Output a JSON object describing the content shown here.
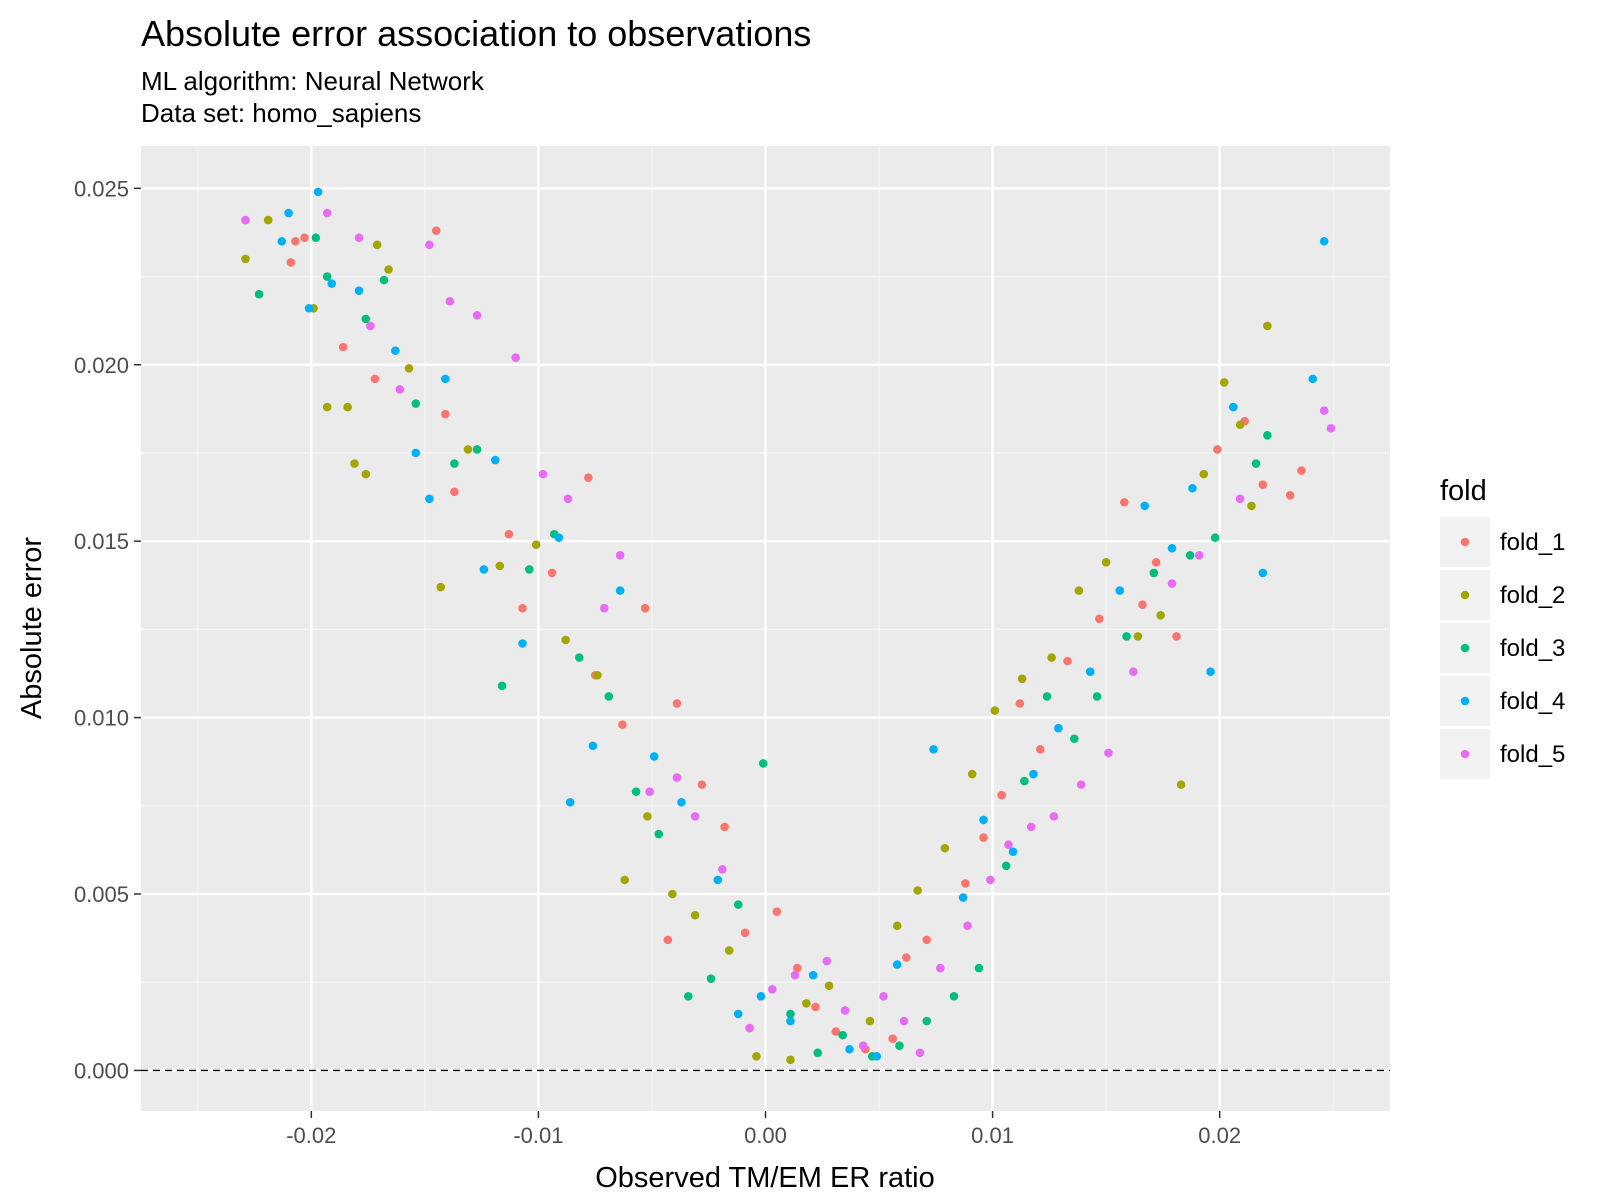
{
  "chart_data": {
    "type": "scatter",
    "title": "Absolute error association to observations",
    "subtitle_lines": [
      "ML algorithm: Neural Network",
      "Data set: homo_sapiens"
    ],
    "xlabel": "Observed TM/EM ER ratio",
    "ylabel": "Absolute error",
    "xlim": [
      -0.0275,
      0.0275
    ],
    "ylim": [
      -0.00115,
      0.0262
    ],
    "x_ticks": [
      -0.02,
      -0.01,
      0.0,
      0.01,
      0.02
    ],
    "x_tick_labels": [
      "-0.02",
      "-0.01",
      "0.00",
      "0.01",
      "0.02"
    ],
    "y_ticks": [
      0.0,
      0.005,
      0.01,
      0.015,
      0.02,
      0.025
    ],
    "y_tick_labels": [
      "0.000",
      "0.005",
      "0.010",
      "0.015",
      "0.020",
      "0.025"
    ],
    "grid": true,
    "reference_line": {
      "y": 0,
      "style": "dashed"
    },
    "legend": {
      "title": "fold",
      "position": "right",
      "entries": [
        {
          "name": "fold_1",
          "color": "#F8766D"
        },
        {
          "name": "fold_2",
          "color": "#A3A500"
        },
        {
          "name": "fold_3",
          "color": "#00BF7D"
        },
        {
          "name": "fold_4",
          "color": "#00B0F6"
        },
        {
          "name": "fold_5",
          "color": "#E76BF3"
        }
      ]
    },
    "series": [
      {
        "name": "fold_1",
        "color": "#F8766D",
        "points": [
          [
            -0.0209,
            0.0229
          ],
          [
            -0.0207,
            0.0235
          ],
          [
            -0.0203,
            0.0236
          ],
          [
            -0.0186,
            0.0205
          ],
          [
            -0.0172,
            0.0196
          ],
          [
            -0.0145,
            0.0238
          ],
          [
            -0.0141,
            0.0186
          ],
          [
            -0.0137,
            0.0164
          ],
          [
            -0.0113,
            0.0152
          ],
          [
            -0.0107,
            0.0131
          ],
          [
            -0.0094,
            0.0141
          ],
          [
            -0.0078,
            0.0168
          ],
          [
            -0.0075,
            0.0112
          ],
          [
            -0.0063,
            0.0098
          ],
          [
            -0.0053,
            0.0131
          ],
          [
            -0.0043,
            0.0037
          ],
          [
            -0.0039,
            0.0104
          ],
          [
            -0.0028,
            0.0081
          ],
          [
            -0.0018,
            0.0069
          ],
          [
            -0.0009,
            0.0039
          ],
          [
            0.0005,
            0.0045
          ],
          [
            0.0014,
            0.0029
          ],
          [
            0.0022,
            0.0018
          ],
          [
            0.0031,
            0.0011
          ],
          [
            0.0044,
            0.0006
          ],
          [
            0.0056,
            0.0009
          ],
          [
            0.0062,
            0.0032
          ],
          [
            0.0071,
            0.0037
          ],
          [
            0.0088,
            0.0053
          ],
          [
            0.0096,
            0.0066
          ],
          [
            0.0104,
            0.0078
          ],
          [
            0.0112,
            0.0104
          ],
          [
            0.0121,
            0.0091
          ],
          [
            0.0133,
            0.0116
          ],
          [
            0.0147,
            0.0128
          ],
          [
            0.0158,
            0.0161
          ],
          [
            0.0166,
            0.0132
          ],
          [
            0.0172,
            0.0144
          ],
          [
            0.0181,
            0.0123
          ],
          [
            0.0199,
            0.0176
          ],
          [
            0.0211,
            0.0184
          ],
          [
            0.0219,
            0.0166
          ],
          [
            0.0231,
            0.0163
          ],
          [
            0.0236,
            0.017
          ]
        ]
      },
      {
        "name": "fold_2",
        "color": "#A3A500",
        "points": [
          [
            -0.0229,
            0.023
          ],
          [
            -0.0219,
            0.0241
          ],
          [
            -0.0199,
            0.0216
          ],
          [
            -0.0193,
            0.0188
          ],
          [
            -0.0184,
            0.0188
          ],
          [
            -0.0181,
            0.0172
          ],
          [
            -0.0176,
            0.0169
          ],
          [
            -0.0171,
            0.0234
          ],
          [
            -0.0166,
            0.0227
          ],
          [
            -0.0157,
            0.0199
          ],
          [
            -0.0143,
            0.0137
          ],
          [
            -0.0131,
            0.0176
          ],
          [
            -0.0117,
            0.0143
          ],
          [
            -0.0101,
            0.0149
          ],
          [
            -0.0088,
            0.0122
          ],
          [
            -0.0074,
            0.0112
          ],
          [
            -0.0062,
            0.0054
          ],
          [
            -0.0052,
            0.0072
          ],
          [
            -0.0041,
            0.005
          ],
          [
            -0.0031,
            0.0044
          ],
          [
            -0.0016,
            0.0034
          ],
          [
            -0.0004,
            0.0004
          ],
          [
            0.0011,
            0.0003
          ],
          [
            0.0018,
            0.0019
          ],
          [
            0.0028,
            0.0024
          ],
          [
            0.0046,
            0.0014
          ],
          [
            0.0058,
            0.0041
          ],
          [
            0.0067,
            0.0051
          ],
          [
            0.0079,
            0.0063
          ],
          [
            0.0091,
            0.0084
          ],
          [
            0.0101,
            0.0102
          ],
          [
            0.0113,
            0.0111
          ],
          [
            0.0126,
            0.0117
          ],
          [
            0.0138,
            0.0136
          ],
          [
            0.015,
            0.0144
          ],
          [
            0.0164,
            0.0123
          ],
          [
            0.0174,
            0.0129
          ],
          [
            0.0183,
            0.0081
          ],
          [
            0.0193,
            0.0169
          ],
          [
            0.0202,
            0.0195
          ],
          [
            0.0209,
            0.0183
          ],
          [
            0.0221,
            0.0211
          ],
          [
            0.0214,
            0.016
          ]
        ]
      },
      {
        "name": "fold_3",
        "color": "#00BF7D",
        "points": [
          [
            -0.0223,
            0.022
          ],
          [
            -0.0198,
            0.0236
          ],
          [
            -0.0193,
            0.0225
          ],
          [
            -0.0176,
            0.0213
          ],
          [
            -0.0168,
            0.0224
          ],
          [
            -0.0154,
            0.0189
          ],
          [
            -0.0137,
            0.0172
          ],
          [
            -0.0127,
            0.0176
          ],
          [
            -0.0116,
            0.0109
          ],
          [
            -0.0104,
            0.0142
          ],
          [
            -0.0093,
            0.0152
          ],
          [
            -0.0082,
            0.0117
          ],
          [
            -0.0069,
            0.0106
          ],
          [
            -0.0057,
            0.0079
          ],
          [
            -0.0047,
            0.0067
          ],
          [
            -0.0034,
            0.0021
          ],
          [
            -0.0024,
            0.0026
          ],
          [
            -0.0012,
            0.0047
          ],
          [
            -0.0001,
            0.0087
          ],
          [
            0.0011,
            0.0016
          ],
          [
            0.0023,
            0.0005
          ],
          [
            0.0034,
            0.001
          ],
          [
            0.0047,
            0.0004
          ],
          [
            0.0059,
            0.0007
          ],
          [
            0.0071,
            0.0014
          ],
          [
            0.0083,
            0.0021
          ],
          [
            0.0094,
            0.0029
          ],
          [
            0.0106,
            0.0058
          ],
          [
            0.0114,
            0.0082
          ],
          [
            0.0124,
            0.0106
          ],
          [
            0.0136,
            0.0094
          ],
          [
            0.0146,
            0.0106
          ],
          [
            0.0159,
            0.0123
          ],
          [
            0.0171,
            0.0141
          ],
          [
            0.0187,
            0.0146
          ],
          [
            0.0198,
            0.0151
          ],
          [
            0.0216,
            0.0172
          ],
          [
            0.0221,
            0.018
          ]
        ]
      },
      {
        "name": "fold_4",
        "color": "#00B0F6",
        "points": [
          [
            -0.0213,
            0.0235
          ],
          [
            -0.021,
            0.0243
          ],
          [
            -0.0201,
            0.0216
          ],
          [
            -0.0197,
            0.0249
          ],
          [
            -0.0191,
            0.0223
          ],
          [
            -0.0179,
            0.0221
          ],
          [
            -0.0163,
            0.0204
          ],
          [
            -0.0154,
            0.0175
          ],
          [
            -0.0148,
            0.0162
          ],
          [
            -0.0141,
            0.0196
          ],
          [
            -0.0124,
            0.0142
          ],
          [
            -0.0119,
            0.0173
          ],
          [
            -0.0107,
            0.0121
          ],
          [
            -0.0091,
            0.0151
          ],
          [
            -0.0086,
            0.0076
          ],
          [
            -0.0076,
            0.0092
          ],
          [
            -0.0064,
            0.0136
          ],
          [
            -0.0049,
            0.0089
          ],
          [
            -0.0037,
            0.0076
          ],
          [
            -0.0021,
            0.0054
          ],
          [
            -0.0012,
            0.0016
          ],
          [
            -0.0002,
            0.0021
          ],
          [
            0.0011,
            0.0014
          ],
          [
            0.0021,
            0.0027
          ],
          [
            0.0037,
            0.0006
          ],
          [
            0.0049,
            0.0004
          ],
          [
            0.0058,
            0.003
          ],
          [
            0.0074,
            0.0091
          ],
          [
            0.0087,
            0.0049
          ],
          [
            0.0096,
            0.0071
          ],
          [
            0.0109,
            0.0062
          ],
          [
            0.0118,
            0.0084
          ],
          [
            0.0129,
            0.0097
          ],
          [
            0.0143,
            0.0113
          ],
          [
            0.0156,
            0.0136
          ],
          [
            0.0167,
            0.016
          ],
          [
            0.0179,
            0.0148
          ],
          [
            0.0188,
            0.0165
          ],
          [
            0.0196,
            0.0113
          ],
          [
            0.0206,
            0.0188
          ],
          [
            0.0219,
            0.0141
          ],
          [
            0.0241,
            0.0196
          ],
          [
            0.0246,
            0.0235
          ]
        ]
      },
      {
        "name": "fold_5",
        "color": "#E76BF3",
        "points": [
          [
            -0.0229,
            0.0241
          ],
          [
            -0.0193,
            0.0243
          ],
          [
            -0.0179,
            0.0236
          ],
          [
            -0.0174,
            0.0211
          ],
          [
            -0.0161,
            0.0193
          ],
          [
            -0.0148,
            0.0234
          ],
          [
            -0.0139,
            0.0218
          ],
          [
            -0.0127,
            0.0214
          ],
          [
            -0.011,
            0.0202
          ],
          [
            -0.0098,
            0.0169
          ],
          [
            -0.0087,
            0.0162
          ],
          [
            -0.0071,
            0.0131
          ],
          [
            -0.0064,
            0.0146
          ],
          [
            -0.0051,
            0.0079
          ],
          [
            -0.0039,
            0.0083
          ],
          [
            -0.0031,
            0.0072
          ],
          [
            -0.0019,
            0.0057
          ],
          [
            -0.0007,
            0.0012
          ],
          [
            0.0003,
            0.0023
          ],
          [
            0.0013,
            0.0027
          ],
          [
            0.0027,
            0.0031
          ],
          [
            0.0035,
            0.0017
          ],
          [
            0.0043,
            0.0007
          ],
          [
            0.0052,
            0.0021
          ],
          [
            0.0061,
            0.0014
          ],
          [
            0.0068,
            0.0005
          ],
          [
            0.0077,
            0.0029
          ],
          [
            0.0089,
            0.0041
          ],
          [
            0.0099,
            0.0054
          ],
          [
            0.0107,
            0.0064
          ],
          [
            0.0117,
            0.0069
          ],
          [
            0.0127,
            0.0072
          ],
          [
            0.0139,
            0.0081
          ],
          [
            0.0151,
            0.009
          ],
          [
            0.0162,
            0.0113
          ],
          [
            0.0179,
            0.0138
          ],
          [
            0.0191,
            0.0146
          ],
          [
            0.0209,
            0.0162
          ],
          [
            0.0246,
            0.0187
          ],
          [
            0.0249,
            0.0182
          ]
        ]
      }
    ]
  }
}
